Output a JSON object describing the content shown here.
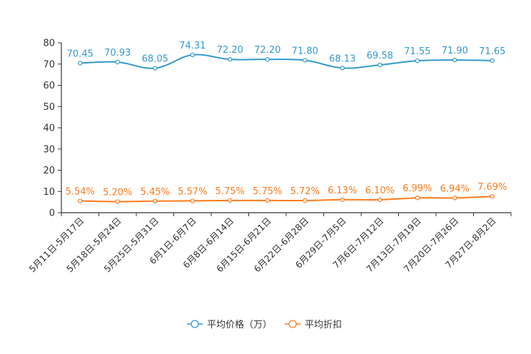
{
  "chart_data": {
    "type": "line",
    "title": "",
    "xlabel": "",
    "ylabel": "",
    "ylim": [
      0,
      80
    ],
    "yticks": [
      "0",
      "10",
      "20",
      "30",
      "40",
      "50",
      "60",
      "70",
      "80"
    ],
    "categories": [
      "5月11日-5月17日",
      "5月18日-5月24日",
      "5月25日-5月31日",
      "6月1日-6月7日",
      "6月8日-6月14日",
      "6月15日-6月21日",
      "6月22日-6月28日",
      "6月29日-7月5日",
      "7月6日-7月12日",
      "7月13日-7月19日",
      "7月20日-7月26日",
      "7月27日-8月2日"
    ],
    "series": [
      {
        "name": "平均价格（万）",
        "color": "#3399cc",
        "values": [
          70.45,
          70.93,
          68.05,
          74.31,
          72.2,
          72.2,
          71.8,
          68.13,
          69.58,
          71.55,
          71.9,
          71.65
        ],
        "labels": [
          "70.45",
          "70.93",
          "68.05",
          "74.31",
          "72.20",
          "72.20",
          "71.80",
          "68.13",
          "69.58",
          "71.55",
          "71.90",
          "71.65"
        ]
      },
      {
        "name": "平均折扣",
        "color": "#ff7a1a",
        "values": [
          5.54,
          5.2,
          5.45,
          5.57,
          5.75,
          5.75,
          5.72,
          6.13,
          6.1,
          6.99,
          6.94,
          7.69
        ],
        "labels": [
          "5.54%",
          "5.20%",
          "5.45%",
          "5.57%",
          "5.75%",
          "5.75%",
          "5.72%",
          "6.13%",
          "6.10%",
          "6.99%",
          "6.94%",
          "7.69%"
        ]
      }
    ],
    "legend_position": "bottom-center",
    "grid": false
  }
}
